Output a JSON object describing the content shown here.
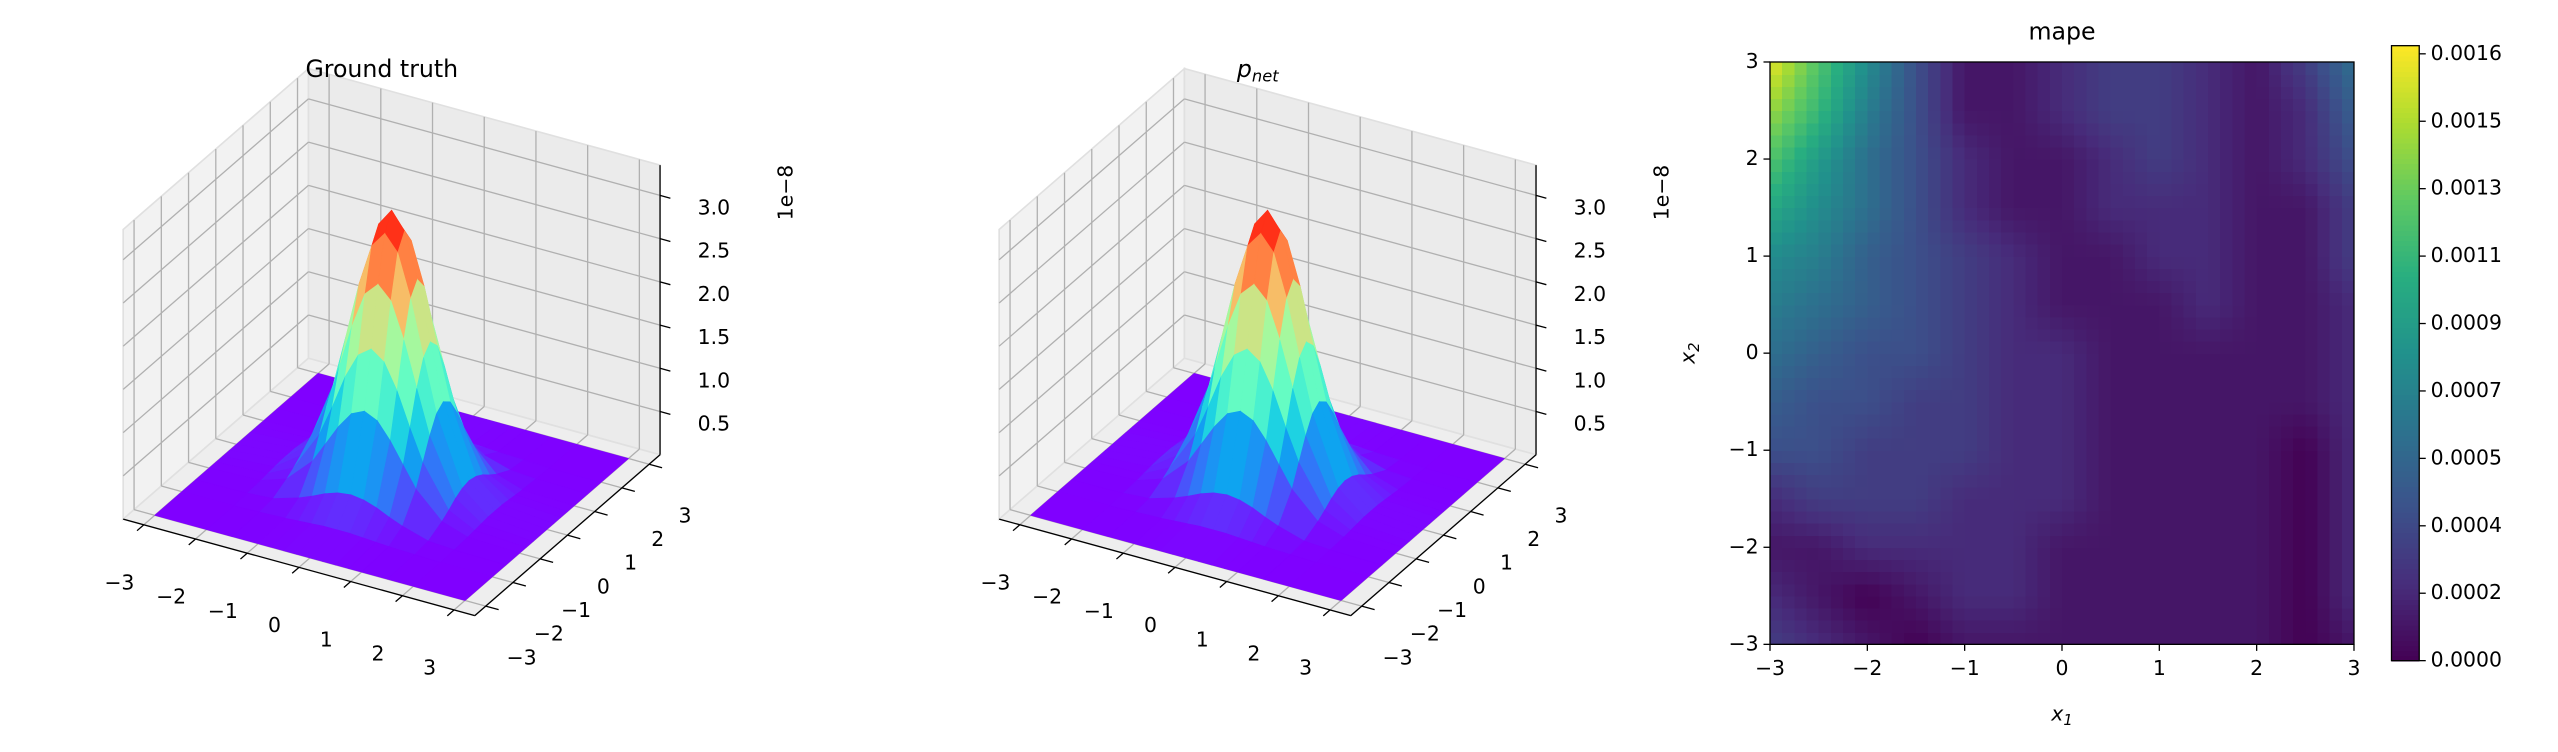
{
  "chart_data": [
    {
      "type": "surface3d",
      "title": "Ground truth",
      "cmap": "rainbow",
      "grid": true,
      "x": [
        -3,
        -2,
        -1.5,
        -1,
        -0.75,
        -0.5,
        -0.25,
        0,
        0.25,
        0.5,
        0.75,
        1,
        1.5,
        2,
        3
      ],
      "y": [
        -3,
        -2,
        -1.5,
        -1,
        -0.75,
        -0.5,
        -0.25,
        0,
        0.25,
        0.5,
        0.75,
        1,
        1.5,
        2,
        3
      ],
      "z": [
        [
          0,
          0,
          0,
          0,
          0,
          0,
          0,
          0,
          0,
          0,
          0,
          0,
          0,
          0,
          0
        ],
        [
          0,
          0,
          0.01,
          0.02,
          0.03,
          0.04,
          0.05,
          0.05,
          0.05,
          0.04,
          0.03,
          0.02,
          0.01,
          0,
          0
        ],
        [
          0,
          0.01,
          0.03,
          0.12,
          0.18,
          0.25,
          0.3,
          0.32,
          0.3,
          0.25,
          0.18,
          0.12,
          0.03,
          0.01,
          0
        ],
        [
          0,
          0.02,
          0.12,
          0.41,
          0.65,
          0.89,
          1.08,
          1.15,
          1.08,
          0.89,
          0.65,
          0.41,
          0.12,
          0.02,
          0
        ],
        [
          0,
          0.03,
          0.18,
          0.65,
          1.01,
          1.4,
          1.69,
          1.8,
          1.69,
          1.4,
          1.01,
          0.65,
          0.18,
          0.03,
          0
        ],
        [
          0,
          0.04,
          0.25,
          0.89,
          1.4,
          1.92,
          2.33,
          2.48,
          2.33,
          1.92,
          1.4,
          0.89,
          0.25,
          0.04,
          0
        ],
        [
          0,
          0.05,
          0.3,
          1.08,
          1.69,
          2.33,
          2.82,
          3,
          2.82,
          2.33,
          1.69,
          1.08,
          0.3,
          0.05,
          0
        ],
        [
          0,
          0.05,
          0.32,
          1.15,
          1.8,
          2.48,
          3,
          3.2,
          3,
          2.48,
          1.8,
          1.15,
          0.32,
          0.05,
          0
        ],
        [
          0,
          0.05,
          0.3,
          1.08,
          1.69,
          2.33,
          2.82,
          3,
          2.82,
          2.33,
          1.69,
          1.08,
          0.3,
          0.05,
          0
        ],
        [
          0,
          0.04,
          0.25,
          0.89,
          1.4,
          1.92,
          2.33,
          2.48,
          2.33,
          1.92,
          1.4,
          0.89,
          0.25,
          0.04,
          0
        ],
        [
          0,
          0.03,
          0.18,
          0.65,
          1.01,
          1.4,
          1.69,
          1.8,
          1.69,
          1.4,
          1.01,
          0.65,
          0.18,
          0.03,
          0
        ],
        [
          0,
          0.02,
          0.12,
          0.41,
          0.65,
          0.89,
          1.08,
          1.15,
          1.08,
          0.89,
          0.65,
          0.41,
          0.12,
          0.02,
          0
        ],
        [
          0,
          0.01,
          0.03,
          0.12,
          0.18,
          0.25,
          0.3,
          0.32,
          0.3,
          0.25,
          0.18,
          0.12,
          0.03,
          0.01,
          0
        ],
        [
          0,
          0,
          0.01,
          0.02,
          0.03,
          0.04,
          0.05,
          0.05,
          0.05,
          0.04,
          0.03,
          0.02,
          0.01,
          0,
          0
        ],
        [
          0,
          0,
          0,
          0,
          0,
          0,
          0,
          0,
          0,
          0,
          0,
          0,
          0,
          0,
          0
        ]
      ],
      "xlim": [
        -3.4,
        3.4
      ],
      "ylim": [
        -3.4,
        3.4
      ],
      "zlim": [
        0,
        3.35
      ],
      "xticks": [
        {
          "value": -3,
          "label": "−3"
        },
        {
          "value": -2,
          "label": "−2"
        },
        {
          "value": -1,
          "label": "−1"
        },
        0,
        1,
        2,
        3
      ],
      "yticks": [
        {
          "value": -3,
          "label": "−3"
        },
        {
          "value": -2,
          "label": "−2"
        },
        {
          "value": -1,
          "label": "−1"
        },
        0,
        1,
        2,
        3
      ],
      "zticks": [
        0.5,
        {
          "value": 1,
          "label": "1.0"
        },
        1.5,
        {
          "value": 2,
          "label": "2.0"
        },
        2.5,
        {
          "value": 3,
          "label": "3.0"
        }
      ],
      "offset_label": "1e−8"
    },
    {
      "type": "surface3d",
      "title": "p",
      "title_subscript": "net",
      "cmap": "rainbow",
      "grid": true,
      "x": [
        -3,
        -2,
        -1.5,
        -1,
        -0.75,
        -0.5,
        -0.25,
        0,
        0.25,
        0.5,
        0.75,
        1,
        1.5,
        2,
        3
      ],
      "y": [
        -3,
        -2,
        -1.5,
        -1,
        -0.75,
        -0.5,
        -0.25,
        0,
        0.25,
        0.5,
        0.75,
        1,
        1.5,
        2,
        3
      ],
      "z": [
        [
          0,
          0,
          0,
          0,
          0,
          0,
          0,
          0,
          0,
          0,
          0,
          0,
          0,
          0,
          0
        ],
        [
          0,
          0,
          0.01,
          0.02,
          0.03,
          0.04,
          0.05,
          0.05,
          0.05,
          0.04,
          0.03,
          0.02,
          0.01,
          0,
          0
        ],
        [
          0,
          0.01,
          0.03,
          0.12,
          0.18,
          0.25,
          0.3,
          0.32,
          0.3,
          0.25,
          0.18,
          0.12,
          0.03,
          0.01,
          0
        ],
        [
          0,
          0.02,
          0.12,
          0.41,
          0.65,
          0.89,
          1.08,
          1.15,
          1.08,
          0.89,
          0.65,
          0.41,
          0.12,
          0.02,
          0
        ],
        [
          0,
          0.03,
          0.18,
          0.65,
          1.01,
          1.4,
          1.69,
          1.8,
          1.69,
          1.4,
          1.01,
          0.65,
          0.18,
          0.03,
          0
        ],
        [
          0,
          0.04,
          0.25,
          0.89,
          1.4,
          1.92,
          2.33,
          2.48,
          2.33,
          1.92,
          1.4,
          0.89,
          0.25,
          0.04,
          0
        ],
        [
          0,
          0.05,
          0.3,
          1.08,
          1.69,
          2.33,
          2.82,
          3,
          2.82,
          2.33,
          1.69,
          1.08,
          0.3,
          0.05,
          0
        ],
        [
          0,
          0.05,
          0.32,
          1.15,
          1.8,
          2.48,
          3,
          3.2,
          3,
          2.48,
          1.8,
          1.15,
          0.32,
          0.05,
          0
        ],
        [
          0,
          0.05,
          0.3,
          1.08,
          1.69,
          2.33,
          2.82,
          3,
          2.82,
          2.33,
          1.69,
          1.08,
          0.3,
          0.05,
          0
        ],
        [
          0,
          0.04,
          0.25,
          0.89,
          1.4,
          1.92,
          2.33,
          2.48,
          2.33,
          1.92,
          1.4,
          0.89,
          0.25,
          0.04,
          0
        ],
        [
          0,
          0.03,
          0.18,
          0.65,
          1.01,
          1.4,
          1.69,
          1.8,
          1.69,
          1.4,
          1.01,
          0.65,
          0.18,
          0.03,
          0
        ],
        [
          0,
          0.02,
          0.12,
          0.41,
          0.65,
          0.89,
          1.08,
          1.15,
          1.08,
          0.89,
          0.65,
          0.41,
          0.12,
          0.02,
          0
        ],
        [
          0,
          0.01,
          0.03,
          0.12,
          0.18,
          0.25,
          0.3,
          0.32,
          0.3,
          0.25,
          0.18,
          0.12,
          0.03,
          0.01,
          0
        ],
        [
          0,
          0,
          0.01,
          0.02,
          0.03,
          0.04,
          0.05,
          0.05,
          0.05,
          0.04,
          0.03,
          0.02,
          0.01,
          0,
          0
        ],
        [
          0,
          0,
          0,
          0,
          0,
          0,
          0,
          0,
          0,
          0,
          0,
          0,
          0,
          0,
          0
        ]
      ],
      "xlim": [
        -3.4,
        3.4
      ],
      "ylim": [
        -3.4,
        3.4
      ],
      "zlim": [
        0,
        3.35
      ],
      "xticks": [
        {
          "value": -3,
          "label": "−3"
        },
        {
          "value": -2,
          "label": "−2"
        },
        {
          "value": -1,
          "label": "−1"
        },
        0,
        1,
        2,
        3
      ],
      "yticks": [
        {
          "value": -3,
          "label": "−3"
        },
        {
          "value": -2,
          "label": "−2"
        },
        {
          "value": -1,
          "label": "−1"
        },
        0,
        1,
        2,
        3
      ],
      "zticks": [
        0.5,
        {
          "value": 1,
          "label": "1.0"
        },
        1.5,
        {
          "value": 2,
          "label": "2.0"
        },
        2.5,
        {
          "value": 3,
          "label": "3.0"
        }
      ],
      "offset_label": "1e−8"
    },
    {
      "type": "heatmap",
      "title": "mape",
      "cmap": "viridis",
      "xlabel": "x",
      "xlabel_subscript": "1",
      "ylabel": "x",
      "ylabel_subscript": "2",
      "x": [
        -3,
        -2.5,
        -2,
        -1.5,
        -1,
        -0.5,
        0,
        0.5,
        1,
        1.5,
        2,
        2.5,
        3
      ],
      "y": [
        -3,
        -2.5,
        -2,
        -1.5,
        -1,
        -0.5,
        0,
        0.5,
        1,
        1.5,
        2,
        2.5,
        3
      ],
      "z": [
        [
          0.0003,
          0.0002,
          0.0001,
          0,
          0.0001,
          0.0001,
          0.0001,
          0.0001,
          0.0001,
          0.0001,
          0.0001,
          0,
          0.0001
        ],
        [
          0.0002,
          0.0001,
          0,
          0.0001,
          0.0002,
          0.0002,
          0.0001,
          0.0001,
          0.0001,
          0.0001,
          0.0001,
          0,
          0.0002
        ],
        [
          0.0001,
          0.0001,
          0.0002,
          0.0002,
          0.0002,
          0.0002,
          0.0001,
          0.0001,
          0.0001,
          0.0001,
          0.0001,
          0,
          0.0002
        ],
        [
          0.0002,
          0.0003,
          0.0003,
          0.0003,
          0.0002,
          0.0002,
          0.0002,
          0.0001,
          0.0001,
          0.0001,
          0.0001,
          0,
          0.0002
        ],
        [
          0.0004,
          0.0004,
          0.0003,
          0.0003,
          0.0003,
          0.0002,
          0.0002,
          0.0001,
          0.0001,
          0.0001,
          0.0001,
          0,
          0.0002
        ],
        [
          0.0005,
          0.0004,
          0.0004,
          0.0003,
          0.0003,
          0.0002,
          0.0002,
          0.0001,
          0.0001,
          0.0001,
          0.0001,
          0.0001,
          0.0002
        ],
        [
          0.0006,
          0.0005,
          0.0004,
          0.0004,
          0.0003,
          0.0002,
          0.0002,
          0.0001,
          0.0001,
          0.0001,
          0.0001,
          0.0001,
          0.0002
        ],
        [
          0.0007,
          0.0006,
          0.0005,
          0.0004,
          0.0003,
          0.0002,
          0.0001,
          0.0001,
          0.0001,
          0.0002,
          0.0001,
          0.0001,
          0.0002
        ],
        [
          0.0008,
          0.0007,
          0.0005,
          0.0004,
          0.0003,
          0.0002,
          0.0001,
          0.0001,
          0.0002,
          0.0002,
          0.0001,
          0.0001,
          0.0003
        ],
        [
          0.001,
          0.0008,
          0.0006,
          0.0004,
          0.0002,
          0.0001,
          0.0001,
          0.0002,
          0.0002,
          0.0002,
          0.0001,
          0.0001,
          0.0003
        ],
        [
          0.0012,
          0.0009,
          0.0006,
          0.0004,
          0.0002,
          0.0001,
          0.0001,
          0.0002,
          0.0003,
          0.0002,
          0.0001,
          0.0002,
          0.0004
        ],
        [
          0.0014,
          0.0011,
          0.0007,
          0.0004,
          0.0001,
          0.0001,
          0.0002,
          0.0003,
          0.0003,
          0.0002,
          0.0001,
          0.0002,
          0.0005
        ],
        [
          0.0016,
          0.0012,
          0.0008,
          0.0004,
          0.0001,
          0.0001,
          0.0002,
          0.0003,
          0.0003,
          0.0002,
          0.0001,
          0.0003,
          0.0006
        ]
      ],
      "xlim": [
        -3,
        3
      ],
      "ylim": [
        -3,
        3
      ],
      "xticks": [
        {
          "value": -3,
          "label": "−3"
        },
        {
          "value": -2,
          "label": "−2"
        },
        {
          "value": -1,
          "label": "−1"
        },
        0,
        1,
        2,
        3
      ],
      "yticks": [
        {
          "value": -3,
          "label": "−3"
        },
        {
          "value": -2,
          "label": "−2"
        },
        {
          "value": -1,
          "label": "−1"
        },
        0,
        1,
        2,
        3
      ],
      "clim": [
        0,
        0.00166
      ],
      "cticks": [
        {
          "value": 0,
          "label": "0.0000"
        },
        {
          "value": 0.000182,
          "label": "0.0002"
        },
        {
          "value": 0.000364,
          "label": "0.0004"
        },
        {
          "value": 0.000546,
          "label": "0.0005"
        },
        {
          "value": 0.000728,
          "label": "0.0007"
        },
        {
          "value": 0.00091,
          "label": "0.0009"
        },
        {
          "value": 0.001092,
          "label": "0.0011"
        },
        {
          "value": 0.001274,
          "label": "0.0013"
        },
        {
          "value": 0.001456,
          "label": "0.0015"
        },
        {
          "value": 0.001638,
          "label": "0.0016"
        }
      ]
    }
  ]
}
